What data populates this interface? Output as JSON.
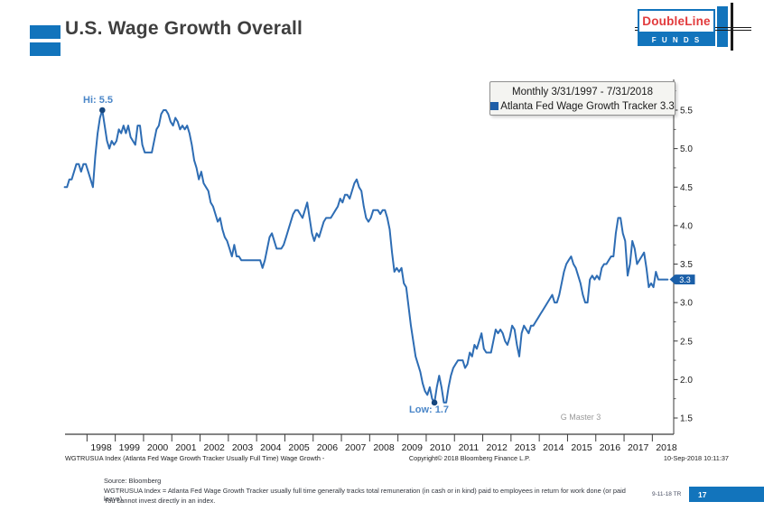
{
  "header": {
    "title": "U.S. Wage Growth Overall"
  },
  "logo": {
    "brand": "DoubleLine",
    "funds": "F U N D S"
  },
  "chart_data": {
    "type": "line",
    "legend": {
      "period": "Monthly 3/31/1997 - 7/31/2018",
      "series_label": "Atlanta Fed Wage Growth Tracker",
      "last_value": "3.3"
    },
    "series_name": "Atlanta Fed Wage Growth Tracker",
    "line_color": "#2E6DB4",
    "x_start": "1997-03",
    "x_end": "2018-07",
    "x_tick_years": [
      1998,
      1999,
      2000,
      2001,
      2002,
      2003,
      2004,
      2005,
      2006,
      2007,
      2008,
      2009,
      2010,
      2011,
      2012,
      2013,
      2014,
      2015,
      2016,
      2017,
      2018
    ],
    "y_ticks": [
      1.5,
      2.0,
      2.5,
      3.0,
      3.5,
      4.0,
      4.5,
      5.0,
      5.5
    ],
    "ylim": [
      1.3,
      5.9
    ],
    "grid": false,
    "legend_position": "top-right",
    "values": [
      4.5,
      4.5,
      4.6,
      4.6,
      4.7,
      4.8,
      4.8,
      4.7,
      4.8,
      4.8,
      4.7,
      4.6,
      4.5,
      4.9,
      5.2,
      5.4,
      5.5,
      5.3,
      5.1,
      5.0,
      5.1,
      5.05,
      5.1,
      5.25,
      5.2,
      5.3,
      5.2,
      5.3,
      5.15,
      5.1,
      5.05,
      5.3,
      5.3,
      5.05,
      4.95,
      4.95,
      4.95,
      4.95,
      5.1,
      5.25,
      5.3,
      5.45,
      5.5,
      5.5,
      5.45,
      5.35,
      5.3,
      5.4,
      5.35,
      5.25,
      5.3,
      5.25,
      5.3,
      5.2,
      5.05,
      4.85,
      4.75,
      4.6,
      4.7,
      4.55,
      4.5,
      4.45,
      4.3,
      4.25,
      4.15,
      4.05,
      4.1,
      3.95,
      3.85,
      3.8,
      3.7,
      3.6,
      3.75,
      3.6,
      3.6,
      3.55,
      3.55,
      3.55,
      3.55,
      3.55,
      3.55,
      3.55,
      3.55,
      3.55,
      3.45,
      3.55,
      3.7,
      3.85,
      3.9,
      3.8,
      3.7,
      3.7,
      3.7,
      3.75,
      3.85,
      3.95,
      4.05,
      4.15,
      4.2,
      4.2,
      4.15,
      4.1,
      4.2,
      4.3,
      4.1,
      3.9,
      3.8,
      3.9,
      3.85,
      3.95,
      4.05,
      4.1,
      4.1,
      4.1,
      4.15,
      4.2,
      4.25,
      4.35,
      4.3,
      4.4,
      4.4,
      4.35,
      4.45,
      4.55,
      4.6,
      4.5,
      4.45,
      4.25,
      4.1,
      4.05,
      4.1,
      4.2,
      4.2,
      4.2,
      4.15,
      4.2,
      4.2,
      4.1,
      3.95,
      3.65,
      3.4,
      3.45,
      3.4,
      3.45,
      3.25,
      3.2,
      2.95,
      2.7,
      2.5,
      2.3,
      2.2,
      2.1,
      1.95,
      1.85,
      1.8,
      1.9,
      1.75,
      1.7,
      1.9,
      2.05,
      1.9,
      1.7,
      1.7,
      1.9,
      2.05,
      2.15,
      2.2,
      2.25,
      2.25,
      2.25,
      2.15,
      2.2,
      2.35,
      2.3,
      2.45,
      2.4,
      2.5,
      2.6,
      2.4,
      2.35,
      2.35,
      2.35,
      2.5,
      2.65,
      2.6,
      2.65,
      2.6,
      2.5,
      2.45,
      2.55,
      2.7,
      2.65,
      2.45,
      2.3,
      2.6,
      2.7,
      2.65,
      2.6,
      2.7,
      2.7,
      2.75,
      2.8,
      2.85,
      2.9,
      2.95,
      3.0,
      3.05,
      3.1,
      3.0,
      3.0,
      3.1,
      3.25,
      3.4,
      3.5,
      3.55,
      3.6,
      3.5,
      3.45,
      3.35,
      3.25,
      3.1,
      3.0,
      3.0,
      3.3,
      3.35,
      3.3,
      3.35,
      3.3,
      3.45,
      3.5,
      3.5,
      3.55,
      3.6,
      3.6,
      3.9,
      4.1,
      4.1,
      3.9,
      3.8,
      3.35,
      3.5,
      3.8,
      3.7,
      3.5,
      3.55,
      3.6,
      3.65,
      3.45,
      3.2,
      3.25,
      3.2,
      3.4,
      3.3,
      3.3,
      3.3,
      3.3,
      3.3
    ],
    "hi": {
      "label": "Hi: 5.5",
      "value": 5.5,
      "index": 16
    },
    "low": {
      "label": "Low: 1.7",
      "value": 1.7,
      "index": 157
    },
    "last_value_badge": "3.3",
    "watermark": "G Master 3"
  },
  "chart_footer": {
    "left": "WGTRUSUA Index (Atlanta Fed Wage Growth Tracker Usually Full Time) Wage Growth -",
    "center": "Copyright© 2018 Bloomberg Finance L.P.",
    "right": "10-Sep-2018 10:11:37"
  },
  "footer": {
    "source": "Source: Bloomberg",
    "disclaimer": "WGTRUSUA Index = Atlanta Fed Wage Growth Tracker usually full time generally tracks total remuneration (in cash or in kind) paid to employees in return for work done (or paid leave).",
    "note": "You cannot invest directly in an index.",
    "date_code": "9-11-18 TR",
    "page": "17"
  },
  "colors": {
    "brand_blue": "#1274BC",
    "brand_red": "#E23A3C",
    "line_blue": "#2E6DB4",
    "badge_blue": "#1B5FA8",
    "annotation_blue": "#4A86C8"
  }
}
